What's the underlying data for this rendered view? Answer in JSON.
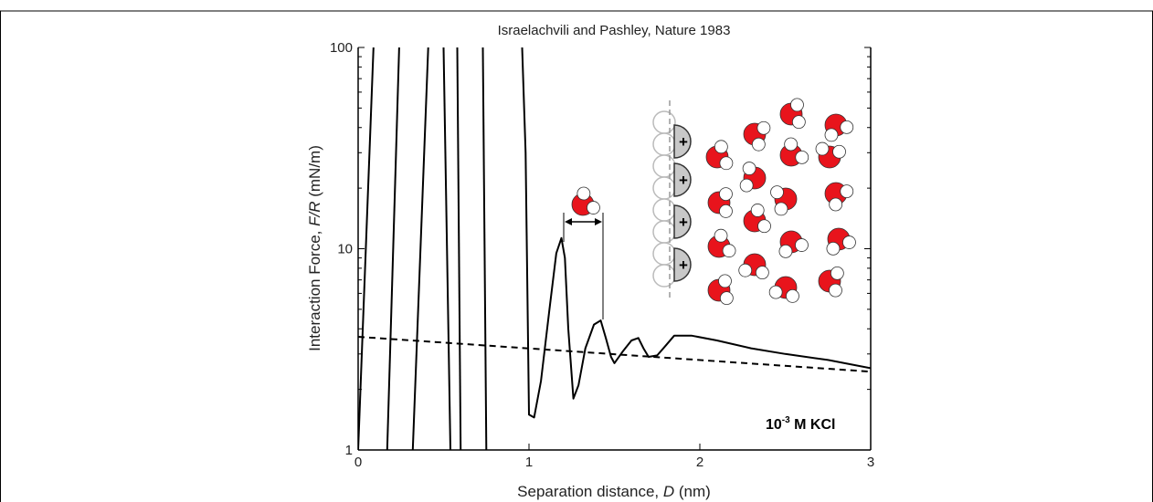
{
  "chart_data": {
    "type": "line",
    "title": "Israelachvili and Pashley, Nature 1983",
    "xlabel": [
      "Separation distance, ",
      "D",
      " (nm)"
    ],
    "ylabel": [
      "Interaction Force, ",
      "F/R",
      " (mN/m)"
    ],
    "xlim": [
      0,
      3
    ],
    "xticks": [
      0,
      1,
      2,
      3
    ],
    "ylim": [
      1,
      100
    ],
    "yticks": [
      1,
      10,
      100
    ],
    "log_y": true,
    "yminorticks": [
      2,
      3,
      4,
      5,
      6,
      7,
      8,
      9,
      20,
      30,
      40,
      50,
      60,
      70,
      80,
      90
    ],
    "annotation": {
      "base": "10",
      "exponent": "-3",
      "rest": " M KCl"
    },
    "ion_charge": "+",
    "series": [
      {
        "style": "solid",
        "color": "#000000",
        "x": [
          0.96,
          0.98,
          1.0,
          1.03,
          1.07,
          1.12,
          1.16,
          1.19,
          1.21,
          1.23,
          1.26,
          1.29,
          1.33,
          1.38,
          1.42,
          1.45,
          1.48,
          1.5,
          1.55,
          1.6,
          1.64,
          1.67,
          1.7,
          1.75,
          1.8,
          1.85,
          1.95,
          2.1,
          2.3,
          2.5,
          2.75,
          3.0
        ],
        "values": [
          100,
          30,
          1.5,
          1.45,
          2.2,
          5,
          9.5,
          11.3,
          9,
          4,
          1.8,
          2.1,
          3.2,
          4.2,
          4.4,
          3.6,
          2.9,
          2.7,
          3.1,
          3.5,
          3.6,
          3.2,
          2.9,
          2.95,
          3.3,
          3.7,
          3.7,
          3.5,
          3.2,
          3.0,
          2.8,
          2.55
        ]
      },
      {
        "style": "solid",
        "color": "#000000",
        "x": [
          0,
          0.09
        ],
        "values": [
          1,
          100
        ]
      },
      {
        "style": "solid",
        "color": "#000000",
        "x": [
          0.17,
          0.24
        ],
        "values": [
          1,
          100
        ]
      },
      {
        "style": "solid",
        "color": "#000000",
        "x": [
          0.32,
          0.41
        ],
        "values": [
          1,
          100
        ]
      },
      {
        "style": "solid",
        "color": "#000000",
        "x": [
          0.54,
          0.5
        ],
        "values": [
          1,
          100
        ]
      },
      {
        "style": "solid",
        "color": "#000000",
        "x": [
          0.6,
          0.58
        ],
        "values": [
          1,
          100
        ]
      },
      {
        "style": "solid",
        "color": "#000000",
        "x": [
          0.75,
          0.73
        ],
        "values": [
          1,
          100
        ]
      },
      {
        "style": "dashed",
        "color": "#000000",
        "x": [
          0,
          3
        ],
        "values": [
          3.65,
          2.45
        ]
      }
    ]
  }
}
